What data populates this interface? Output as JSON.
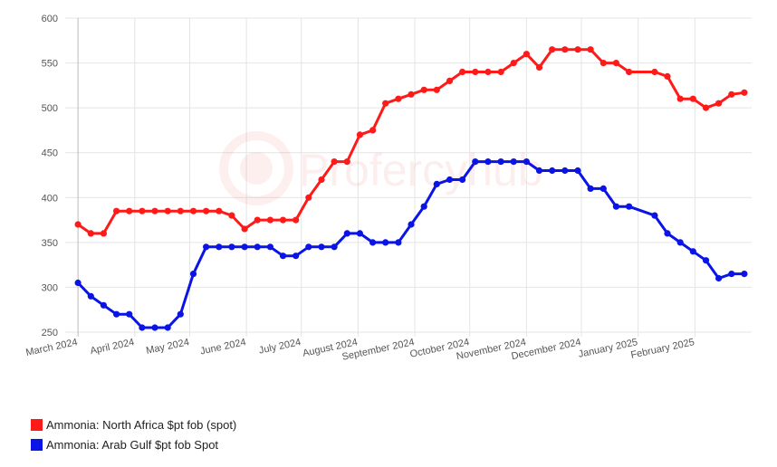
{
  "chart_data": {
    "type": "line",
    "x": [
      "2024-03-01",
      "2024-03-08",
      "2024-03-15",
      "2024-03-22",
      "2024-03-29",
      "2024-04-05",
      "2024-04-12",
      "2024-04-19",
      "2024-04-26",
      "2024-05-03",
      "2024-05-10",
      "2024-05-17",
      "2024-05-24",
      "2024-05-31",
      "2024-06-07",
      "2024-06-14",
      "2024-06-21",
      "2024-06-28",
      "2024-07-05",
      "2024-07-12",
      "2024-07-19",
      "2024-07-26",
      "2024-08-02",
      "2024-08-09",
      "2024-08-16",
      "2024-08-23",
      "2024-08-30",
      "2024-09-06",
      "2024-09-13",
      "2024-09-20",
      "2024-09-27",
      "2024-10-04",
      "2024-10-11",
      "2024-10-18",
      "2024-10-25",
      "2024-11-01",
      "2024-11-08",
      "2024-11-15",
      "2024-11-22",
      "2024-11-29",
      "2024-12-06",
      "2024-12-13",
      "2024-12-20",
      "2024-12-27",
      "2025-01-10",
      "2025-01-17",
      "2025-01-24",
      "2025-01-31",
      "2025-02-07",
      "2025-02-14",
      "2025-02-21",
      "2025-02-28"
    ],
    "series": [
      {
        "name": "Ammonia: North Africa $pt fob (spot)",
        "color": "#ff1a1a",
        "values": [
          370,
          360,
          360,
          385,
          385,
          385,
          385,
          385,
          385,
          385,
          385,
          385,
          380,
          365,
          375,
          375,
          375,
          375,
          400,
          420,
          440,
          440,
          470,
          475,
          505,
          510,
          515,
          520,
          520,
          530,
          540,
          540,
          540,
          540,
          550,
          560,
          545,
          565,
          565,
          565,
          565,
          550,
          550,
          540,
          540,
          535,
          510,
          510,
          500,
          505,
          515,
          517
        ]
      },
      {
        "name": "Ammonia: Arab Gulf $pt fob Spot",
        "color": "#0a14e6",
        "values": [
          305,
          290,
          280,
          270,
          270,
          255,
          255,
          255,
          270,
          315,
          345,
          345,
          345,
          345,
          345,
          345,
          335,
          335,
          345,
          345,
          345,
          360,
          360,
          350,
          350,
          350,
          370,
          390,
          415,
          420,
          420,
          440,
          440,
          440,
          440,
          440,
          430,
          430,
          430,
          430,
          410,
          410,
          390,
          390,
          380,
          360,
          350,
          340,
          330,
          310,
          315,
          315
        ]
      }
    ],
    "xtick_labels": [
      "March 2024",
      "April 2024",
      "May 2024",
      "June 2024",
      "July 2024",
      "August 2024",
      "September 2024",
      "October 2024",
      "November 2024",
      "December 2024",
      "January 2025",
      "February 2025"
    ],
    "ytick_labels": [
      "250",
      "300",
      "350",
      "400",
      "450",
      "500",
      "550",
      "600"
    ],
    "ylim": [
      250,
      600
    ],
    "title": "",
    "xlabel": "",
    "ylabel": "",
    "grid": true,
    "legend_position": "bottom-left",
    "watermark": "Profercyhub"
  }
}
